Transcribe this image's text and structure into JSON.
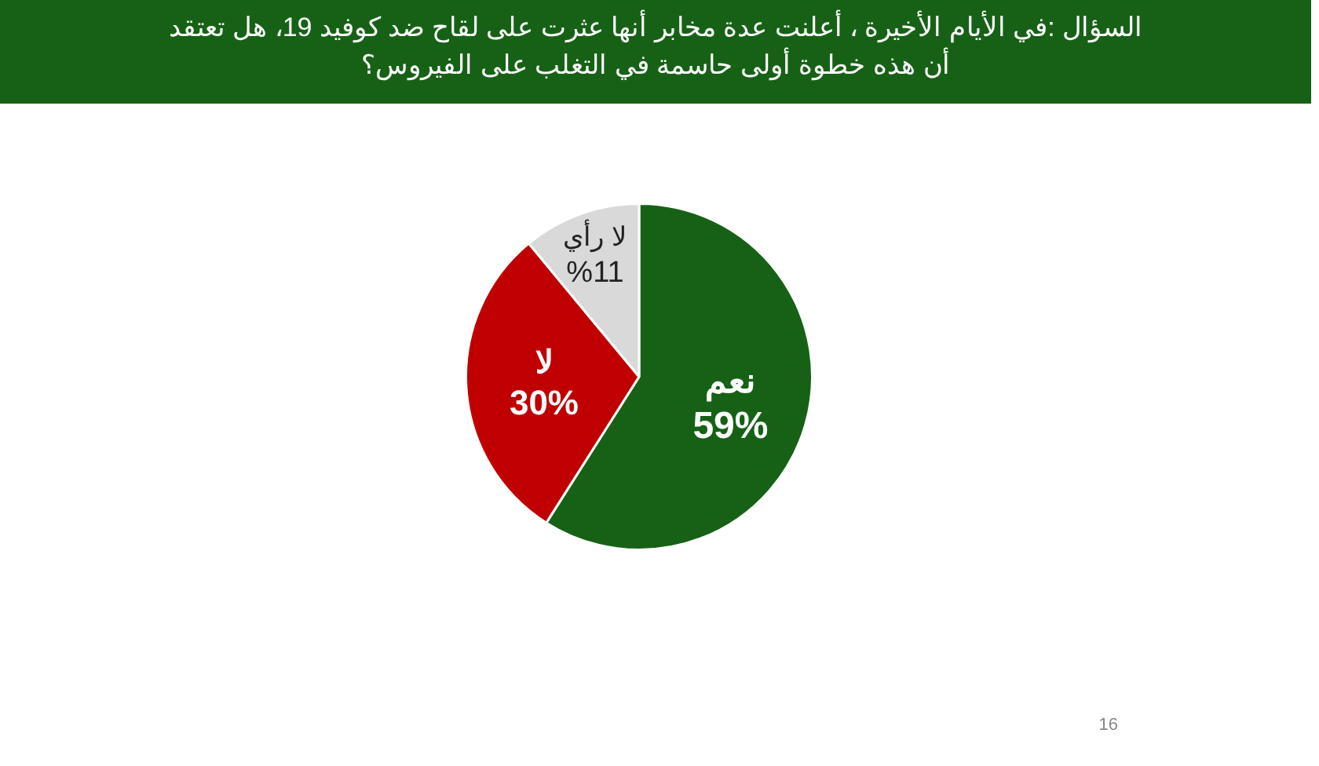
{
  "chart_data": {
    "type": "pie",
    "title": "السؤال :في الأيام الأخيرة ، أعلنت عدة مخابر أنها عثرت على لقاح ضد كوفيد 19، هل تعتقد أن هذه خطوة أولى حاسمة في التغلب على الفيروس؟",
    "categories": [
      "نعم",
      "لا",
      "لا رأي"
    ],
    "values": [
      59,
      30,
      11
    ],
    "colors": [
      "#176117",
      "#c00000",
      "#d9d9d9"
    ],
    "value_labels": [
      "59%",
      "30%",
      "%11"
    ],
    "legend": false,
    "annotations": [
      "16"
    ]
  }
}
